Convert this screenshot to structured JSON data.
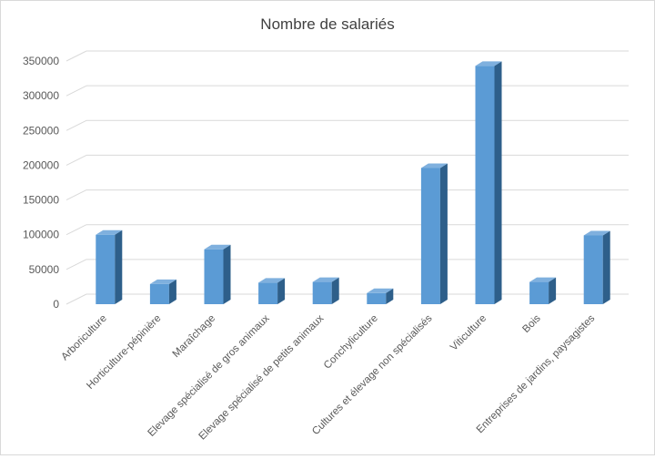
{
  "chart_data": {
    "type": "bar",
    "title": "Nombre de salariés",
    "xlabel": "",
    "ylabel": "",
    "categories": [
      "Arboriculture",
      "Horticulture-pépinière",
      "Maraîchage",
      "Elevage spécialisé de gros animaux",
      "Elevage spécialisé de petits animaux",
      "Conchyliculture",
      "Cultures et élevage non spécialisés",
      "Viticulture",
      "Bois",
      "Entreprises de jardins, paysagistes"
    ],
    "values": [
      100000,
      29000,
      79000,
      31000,
      32000,
      16000,
      196000,
      343000,
      32000,
      99000
    ],
    "ylim": [
      0,
      350000
    ],
    "yticks": [
      0,
      50000,
      100000,
      150000,
      200000,
      250000,
      300000,
      350000
    ],
    "grid": true,
    "legend": "none",
    "style": "3d-column",
    "colors": {
      "bar_front": "#5b9bd5",
      "bar_side": "#2e5f8a",
      "bar_top": "#7fb0de",
      "gridline": "#d9d9d9",
      "text": "#595959",
      "title": "#404040"
    }
  }
}
